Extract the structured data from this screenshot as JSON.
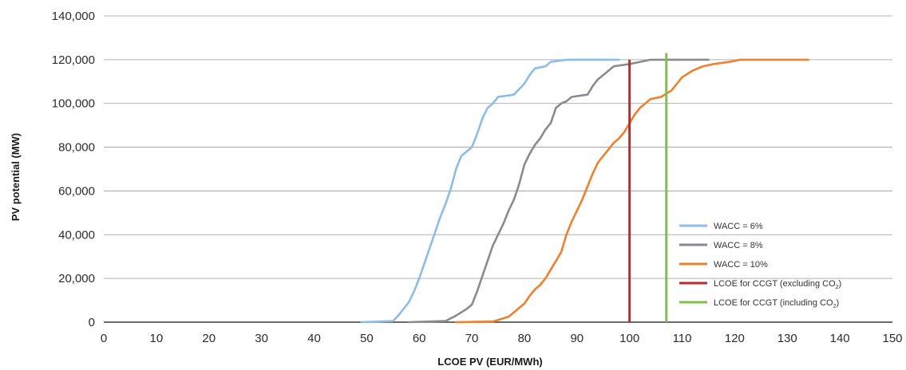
{
  "chart_data": {
    "type": "line",
    "xlabel": "LCOE PV (EUR/MWh)",
    "ylabel": "PV potential (MW)",
    "xlim": [
      0,
      150
    ],
    "ylim": [
      0,
      140000
    ],
    "x_ticks": [
      0,
      10,
      20,
      30,
      40,
      50,
      60,
      70,
      80,
      90,
      100,
      110,
      120,
      130,
      140,
      150
    ],
    "x_tick_labels": [
      "0",
      "10",
      "20",
      "30",
      "40",
      "50",
      "60",
      "70",
      "80",
      "90",
      "100",
      "110",
      "120",
      "130",
      "140",
      "150"
    ],
    "y_ticks": [
      0,
      20000,
      40000,
      60000,
      80000,
      100000,
      120000,
      140000
    ],
    "y_tick_labels": [
      "0",
      "20,000",
      "40,000",
      "60,000",
      "80,000",
      "100,000",
      "120,000",
      "140,000"
    ],
    "grid": "horizontal",
    "legend_position": "bottom-right",
    "series": [
      {
        "name": "WACC = 6%",
        "color": "#8cbde8",
        "points": [
          [
            49,
            0
          ],
          [
            55,
            500
          ],
          [
            56,
            3000
          ],
          [
            57,
            6000
          ],
          [
            58,
            9000
          ],
          [
            59,
            14000
          ],
          [
            60,
            20000
          ],
          [
            61,
            27000
          ],
          [
            62,
            34000
          ],
          [
            63,
            41000
          ],
          [
            64,
            48000
          ],
          [
            65,
            54000
          ],
          [
            66,
            61000
          ],
          [
            67,
            70000
          ],
          [
            68,
            76000
          ],
          [
            69,
            78000
          ],
          [
            70,
            80000
          ],
          [
            71,
            86000
          ],
          [
            72,
            93000
          ],
          [
            73,
            98000
          ],
          [
            74,
            100000
          ],
          [
            75,
            103000
          ],
          [
            78,
            104000
          ],
          [
            80,
            109000
          ],
          [
            81,
            113000
          ],
          [
            82,
            116000
          ],
          [
            84,
            117000
          ],
          [
            85,
            119000
          ],
          [
            88,
            120000
          ],
          [
            98,
            120000
          ]
        ]
      },
      {
        "name": "WACC = 8%",
        "color": "#8a8a90",
        "points": [
          [
            58,
            0
          ],
          [
            65,
            500
          ],
          [
            67,
            3000
          ],
          [
            69,
            6000
          ],
          [
            70,
            8000
          ],
          [
            71,
            14000
          ],
          [
            72,
            21000
          ],
          [
            73,
            28000
          ],
          [
            74,
            35000
          ],
          [
            75,
            40000
          ],
          [
            76,
            45000
          ],
          [
            77,
            51000
          ],
          [
            78,
            56000
          ],
          [
            79,
            63000
          ],
          [
            80,
            72000
          ],
          [
            81,
            77000
          ],
          [
            82,
            81000
          ],
          [
            83,
            84000
          ],
          [
            84,
            88000
          ],
          [
            85,
            91000
          ],
          [
            86,
            98000
          ],
          [
            87,
            100000
          ],
          [
            88,
            101000
          ],
          [
            89,
            103000
          ],
          [
            92,
            104000
          ],
          [
            93,
            108000
          ],
          [
            94,
            111000
          ],
          [
            95,
            113000
          ],
          [
            96,
            115000
          ],
          [
            97,
            117000
          ],
          [
            100,
            118000
          ],
          [
            102,
            119000
          ],
          [
            104,
            120000
          ],
          [
            115,
            120000
          ]
        ]
      },
      {
        "name": "WACC = 10%",
        "color": "#f07f2e",
        "points": [
          [
            67,
            0
          ],
          [
            74,
            300
          ],
          [
            75,
            1000
          ],
          [
            77,
            2500
          ],
          [
            78,
            4500
          ],
          [
            79,
            6500
          ],
          [
            80,
            8500
          ],
          [
            81,
            12000
          ],
          [
            82,
            15000
          ],
          [
            83,
            17000
          ],
          [
            84,
            20000
          ],
          [
            85,
            24000
          ],
          [
            86,
            28000
          ],
          [
            87,
            32000
          ],
          [
            88,
            40000
          ],
          [
            89,
            46000
          ],
          [
            90,
            51000
          ],
          [
            91,
            56000
          ],
          [
            92,
            62000
          ],
          [
            93,
            68000
          ],
          [
            94,
            73000
          ],
          [
            95,
            76000
          ],
          [
            96,
            79000
          ],
          [
            97,
            82000
          ],
          [
            98,
            84000
          ],
          [
            99,
            87000
          ],
          [
            100,
            91000
          ],
          [
            101,
            95000
          ],
          [
            102,
            98000
          ],
          [
            103,
            100000
          ],
          [
            104,
            102000
          ],
          [
            106,
            103000
          ],
          [
            108,
            106000
          ],
          [
            109,
            109000
          ],
          [
            110,
            112000
          ],
          [
            112,
            115000
          ],
          [
            114,
            117000
          ],
          [
            116,
            118000
          ],
          [
            119,
            119000
          ],
          [
            121,
            120000
          ],
          [
            134,
            120000
          ]
        ]
      },
      {
        "name": "LCOE for CCGT (excluding CO2)",
        "color": "#c0282d",
        "x": 100,
        "y_range": [
          0,
          120000
        ]
      },
      {
        "name": "LCOE for CCGT (including CO2)",
        "color": "#7dc04a",
        "x": 107,
        "y_range": [
          0,
          123000
        ]
      }
    ],
    "legend_entries": [
      {
        "base": "WACC = 6%",
        "sub": "",
        "tail": ""
      },
      {
        "base": "WACC = 8%",
        "sub": "",
        "tail": ""
      },
      {
        "base": "WACC = 10%",
        "sub": "",
        "tail": ""
      },
      {
        "base": "LCOE for CCGT (excluding CO",
        "sub": "2",
        "tail": ")"
      },
      {
        "base": "LCOE for CCGT (including CO",
        "sub": "2",
        "tail": ")"
      }
    ]
  }
}
